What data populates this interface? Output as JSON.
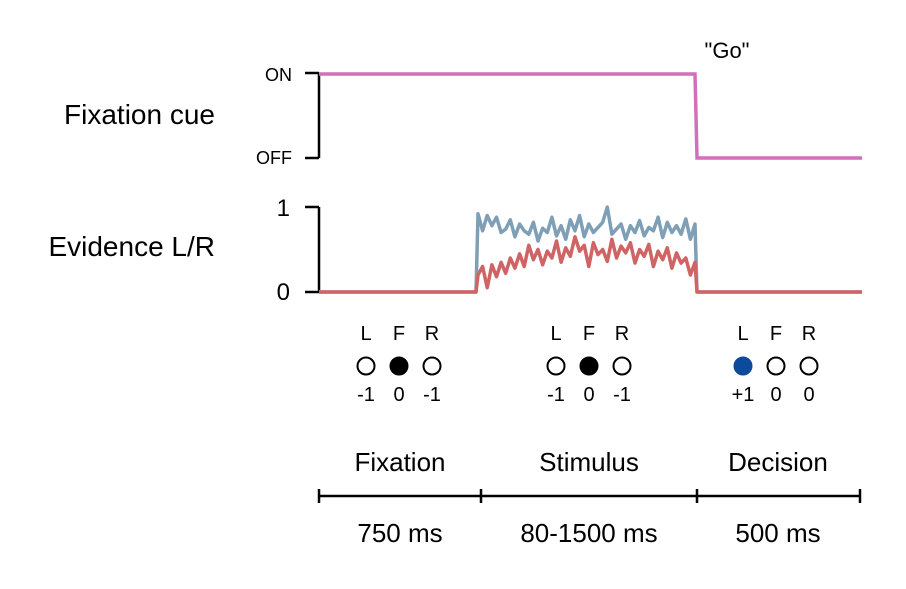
{
  "fixation_cue": {
    "label": "Fixation cue",
    "on_label": "ON",
    "off_label": "OFF",
    "go_label": "\"Go\"",
    "color": "#d36fba"
  },
  "evidence": {
    "label": "Evidence L/R",
    "tick_top": "1",
    "tick_bottom": "0",
    "series": [
      {
        "color": "#7f9fb7",
        "values": [
          0.92,
          0.72,
          0.9,
          0.78,
          0.88,
          0.7,
          0.74,
          0.85,
          0.65,
          0.8,
          0.72,
          0.68,
          0.82,
          0.6,
          0.75,
          0.7,
          0.88,
          0.66,
          0.78,
          0.62,
          0.85,
          0.72,
          0.9,
          0.65,
          0.8,
          0.7,
          0.76,
          0.82,
          1.0,
          0.68,
          0.74,
          0.8,
          0.62,
          0.78,
          0.7,
          0.84,
          0.66,
          0.76,
          0.72,
          0.88,
          0.64,
          0.82,
          0.7,
          0.78,
          0.68,
          0.86,
          0.62,
          0.8
        ]
      },
      {
        "color": "#d06464",
        "values": [
          0.2,
          0.3,
          0.05,
          0.32,
          0.18,
          0.35,
          0.22,
          0.4,
          0.28,
          0.45,
          0.3,
          0.55,
          0.38,
          0.5,
          0.32,
          0.48,
          0.4,
          0.6,
          0.35,
          0.52,
          0.42,
          0.65,
          0.48,
          0.55,
          0.3,
          0.58,
          0.44,
          0.5,
          0.36,
          0.62,
          0.4,
          0.54,
          0.46,
          0.58,
          0.34,
          0.5,
          0.42,
          0.56,
          0.3,
          0.48,
          0.38,
          0.52,
          0.28,
          0.46,
          0.34,
          0.4,
          0.2,
          0.35
        ]
      }
    ]
  },
  "panels": [
    {
      "letters": [
        "L",
        "F",
        "R"
      ],
      "values": [
        "-1",
        "0",
        "-1"
      ],
      "filled": [
        false,
        true,
        false
      ],
      "fill_color": "#000000"
    },
    {
      "letters": [
        "L",
        "F",
        "R"
      ],
      "values": [
        "-1",
        "0",
        "-1"
      ],
      "filled": [
        false,
        true,
        false
      ],
      "fill_color": "#000000"
    },
    {
      "letters": [
        "L",
        "F",
        "R"
      ],
      "values": [
        "+1",
        "0",
        "0"
      ],
      "filled": [
        true,
        false,
        false
      ],
      "fill_color": "#0d4a9c"
    }
  ],
  "phases": [
    {
      "name": "Fixation",
      "duration": "750 ms"
    },
    {
      "name": "Stimulus",
      "duration": "80-1500 ms"
    },
    {
      "name": "Decision",
      "duration": "500 ms"
    }
  ]
}
